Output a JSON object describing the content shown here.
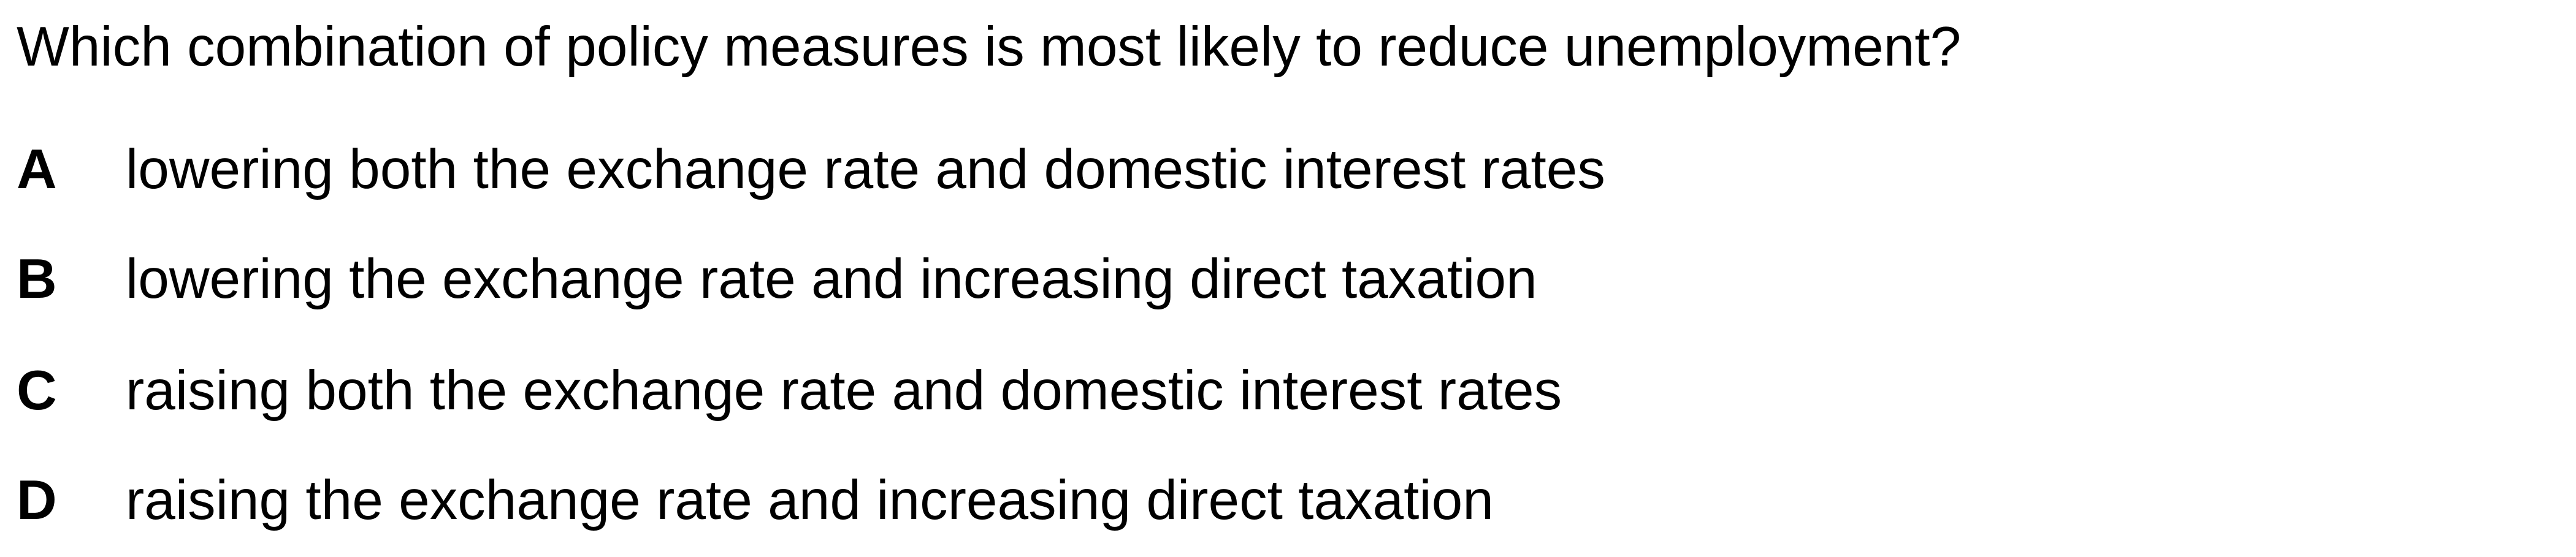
{
  "question": {
    "text": "Which combination of policy measures is most likely to reduce unemployment?"
  },
  "options": [
    {
      "letter": "A",
      "text": "lowering both the exchange rate and domestic interest rates"
    },
    {
      "letter": "B",
      "text": "lowering the exchange rate and increasing direct taxation"
    },
    {
      "letter": "C",
      "text": "raising both the exchange rate and domestic interest rates"
    },
    {
      "letter": "D",
      "text": "raising the exchange rate and increasing direct taxation"
    }
  ]
}
